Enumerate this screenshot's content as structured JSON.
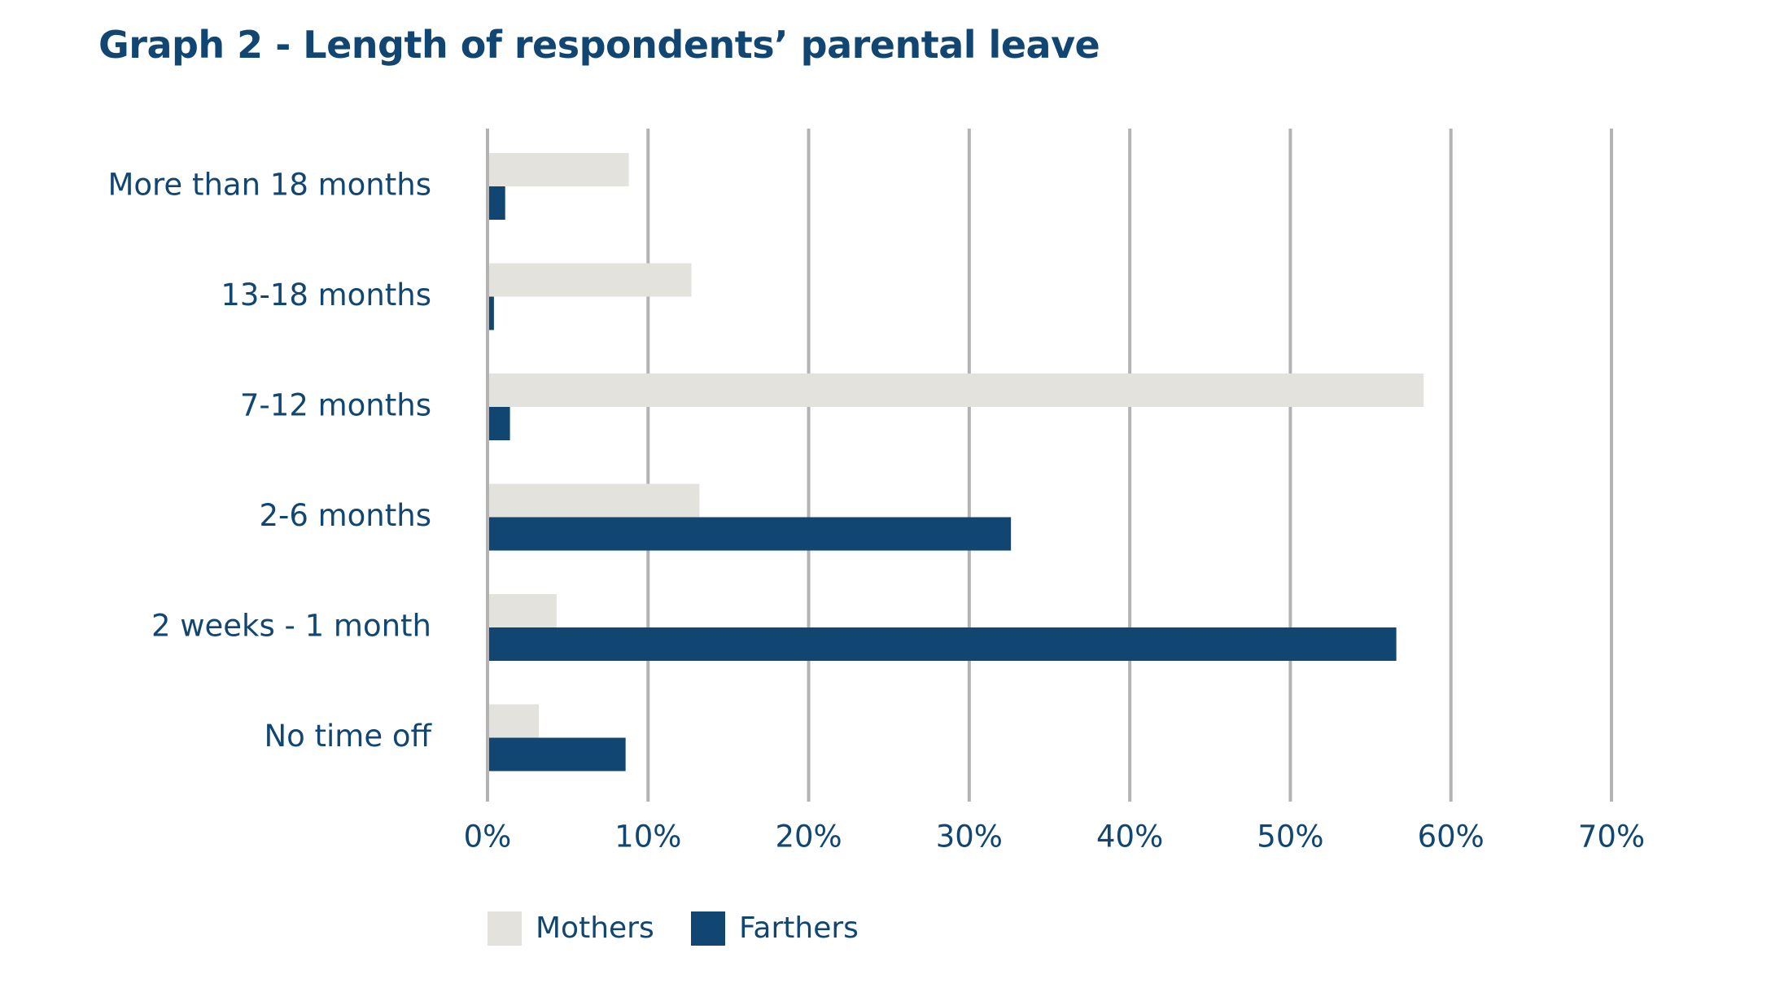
{
  "chart_data": {
    "type": "bar",
    "orientation": "horizontal",
    "title": "Graph 2 - Length of respondents’ parental leave",
    "categories": [
      "More than 18 months",
      "13-18 months",
      "7-12 months",
      "2-6 months",
      "2 weeks - 1 month",
      "No time off"
    ],
    "series": [
      {
        "name": "Mothers",
        "color": "#e3e2dd",
        "values": [
          8.8,
          12.7,
          58.3,
          13.2,
          4.3,
          3.2
        ]
      },
      {
        "name": "Farthers",
        "color": "#124672",
        "values": [
          1.1,
          0.4,
          1.4,
          32.6,
          56.6,
          8.6
        ]
      }
    ],
    "xlim": [
      0,
      70
    ],
    "xticks": [
      0,
      10,
      20,
      30,
      40,
      50,
      60,
      70
    ],
    "xtick_labels": [
      "0%",
      "10%",
      "20%",
      "30%",
      "40%",
      "50%",
      "60%",
      "70%"
    ],
    "grid": true,
    "legend": "bottom-left",
    "gridline_color": "#b3b3b3",
    "text_color": "#124672"
  }
}
